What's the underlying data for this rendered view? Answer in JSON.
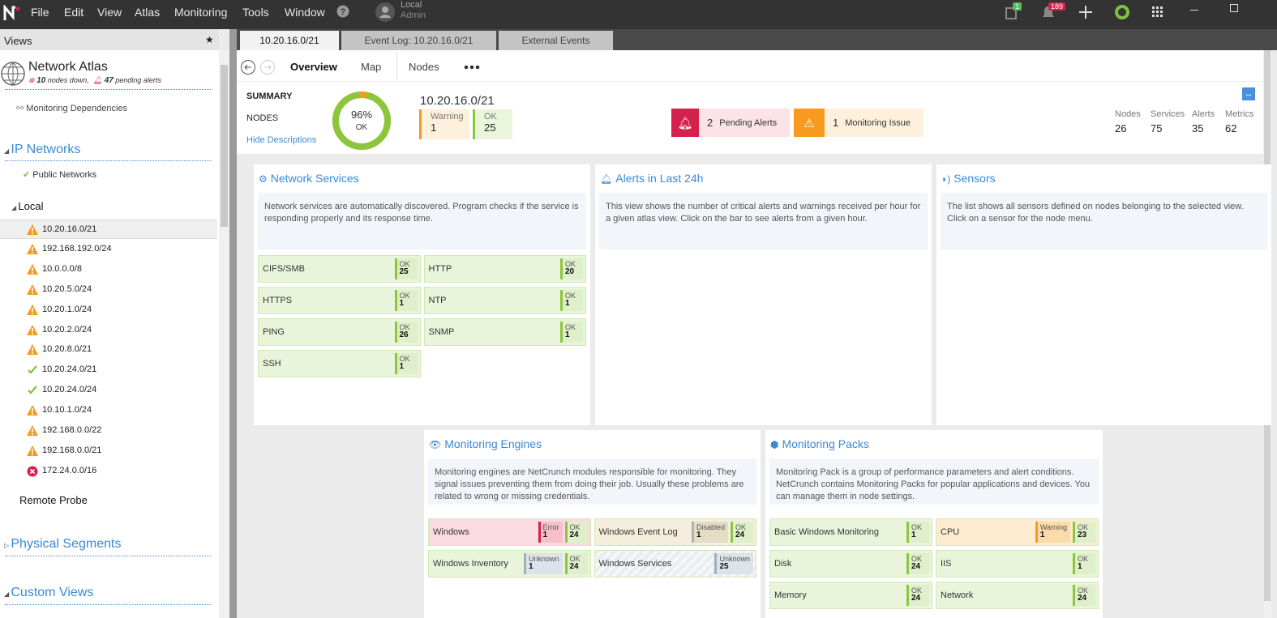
{
  "menu": {
    "items": [
      "File",
      "Edit",
      "View",
      "Atlas",
      "Monitoring",
      "Tools",
      "Window"
    ],
    "user": {
      "location": "Local",
      "role": "Admin"
    },
    "badges": {
      "tasks": 1,
      "notifications": 189
    }
  },
  "sidebar": {
    "header": "Views",
    "atlas": {
      "title": "Network Atlas",
      "nodes_down": 10,
      "nodes_down_text": "nodes down,",
      "pending_alerts": 47,
      "pending_alerts_text": "pending alerts"
    },
    "dependencies": "Monitoring Dependencies",
    "ip_networks": {
      "title": "IP Networks",
      "public": "Public Networks",
      "local": "Local",
      "networks": [
        {
          "name": "10.20.16.0/21",
          "status": "warning"
        },
        {
          "name": "192.168.192.0/24",
          "status": "warning"
        },
        {
          "name": "10.0.0.0/8",
          "status": "warning"
        },
        {
          "name": "10.20.5.0/24",
          "status": "warning"
        },
        {
          "name": "10.20.1.0/24",
          "status": "warning"
        },
        {
          "name": "10.20.2.0/24",
          "status": "warning"
        },
        {
          "name": "10.20.8.0/21",
          "status": "warning"
        },
        {
          "name": "10.20.24.0/21",
          "status": "ok"
        },
        {
          "name": "10.20.24.0/24",
          "status": "ok"
        },
        {
          "name": "10.10.1.0/24",
          "status": "warning"
        },
        {
          "name": "192.168.0.0/22",
          "status": "warning"
        },
        {
          "name": "192.168.0.0/21",
          "status": "warning"
        },
        {
          "name": "172.24.0.0/16",
          "status": "error"
        }
      ]
    },
    "remote_probe": "Remote Probe",
    "physical_segments": "Physical Segments",
    "custom_views": "Custom Views"
  },
  "tabs": [
    "10.20.16.0/21",
    "Event Log: 10.20.16.0/21",
    "External Events"
  ],
  "nav": [
    "Overview",
    "Map",
    "Nodes"
  ],
  "summary": {
    "heading": "SUMMARY",
    "nodes_label": "NODES",
    "hide": "Hide Descriptions",
    "donut": {
      "value": 96,
      "label": "96%",
      "caption": "OK"
    },
    "network": "10.20.16.0/21",
    "counts": [
      {
        "label": "Warning",
        "value": 1,
        "status": "warning"
      },
      {
        "label": "OK",
        "value": 25,
        "status": "ok"
      }
    ],
    "pending_alerts": {
      "value": 2,
      "label": "Pending Alerts"
    },
    "monitoring_issue": {
      "value": 1,
      "label": "Monitoring Issue"
    },
    "stats": [
      {
        "label": "Nodes",
        "value": 26
      },
      {
        "label": "Services",
        "value": 75
      },
      {
        "label": "Alerts",
        "value": 35
      },
      {
        "label": "Metrics",
        "value": 62
      }
    ]
  },
  "panels": [
    {
      "title": "Network Services",
      "icon": "services",
      "description": "Network services are automatically discovered. Program checks if the service is responding properly and its response time.",
      "tiles": [
        {
          "name": "CIFS/SMB",
          "status": "ok",
          "states": [
            {
              "label": "OK",
              "count": 25,
              "status": "ok"
            }
          ]
        },
        {
          "name": "HTTP",
          "status": "ok",
          "states": [
            {
              "label": "OK",
              "count": 20,
              "status": "ok"
            }
          ]
        },
        {
          "name": "HTTPS",
          "status": "ok",
          "states": [
            {
              "label": "OK",
              "count": 1,
              "status": "ok"
            }
          ]
        },
        {
          "name": "NTP",
          "status": "ok",
          "states": [
            {
              "label": "OK",
              "count": 1,
              "status": "ok"
            }
          ]
        },
        {
          "name": "PING",
          "status": "ok",
          "states": [
            {
              "label": "OK",
              "count": 26,
              "status": "ok"
            }
          ]
        },
        {
          "name": "SNMP",
          "status": "ok",
          "states": [
            {
              "label": "OK",
              "count": 1,
              "status": "ok"
            }
          ]
        },
        {
          "name": "SSH",
          "status": "ok",
          "states": [
            {
              "label": "OK",
              "count": 1,
              "status": "ok"
            }
          ]
        }
      ]
    },
    {
      "title": "Alerts in Last 24h",
      "icon": "bell",
      "description": "This view shows the number of critical alerts and warnings received per hour for a given atlas view. Click on the bar to see alerts from a given hour."
    },
    {
      "title": "Sensors",
      "icon": "sensor",
      "description": "The list shows all sensors defined on nodes belonging to the selected view. Click on a sensor for the node menu."
    },
    {
      "title": "Monitoring Engines",
      "icon": "eye",
      "description": "Monitoring engines are NetCrunch modules responsible for monitoring. They signal issues preventing them from doing their job. Usually these problems are related to wrong or missing credentials.",
      "tiles": [
        {
          "name": "Windows",
          "status": "error",
          "states": [
            {
              "label": "Error",
              "count": 1,
              "status": "error"
            },
            {
              "label": "OK",
              "count": 24,
              "status": "ok"
            }
          ]
        },
        {
          "name": "Windows Event Log",
          "status": "disabled",
          "states": [
            {
              "label": "Disabled",
              "count": 1,
              "status": "disabled"
            },
            {
              "label": "OK",
              "count": 24,
              "status": "ok"
            }
          ]
        },
        {
          "name": "Windows Inventory",
          "status": "ok",
          "states": [
            {
              "label": "Unknown",
              "count": 1,
              "status": "unknown"
            },
            {
              "label": "OK",
              "count": 24,
              "status": "ok"
            }
          ]
        },
        {
          "name": "Windows Services",
          "status": "unknown",
          "states": [
            {
              "label": "Unknown",
              "count": 25,
              "status": "unknown"
            }
          ]
        }
      ]
    },
    {
      "title": "Monitoring Packs",
      "icon": "pack",
      "description": "Monitoring Pack is a group of performance parameters and alert conditions. NetCrunch contains Monitoring Packs for popular applications and devices. You can manage them in node settings.",
      "tiles": [
        {
          "name": "Basic Windows Monitoring",
          "status": "ok",
          "states": [
            {
              "label": "OK",
              "count": 1,
              "status": "ok"
            }
          ]
        },
        {
          "name": "CPU",
          "status": "warning",
          "states": [
            {
              "label": "Warning",
              "count": 1,
              "status": "warning"
            },
            {
              "label": "OK",
              "count": 23,
              "status": "ok"
            }
          ]
        },
        {
          "name": "Disk",
          "status": "ok",
          "states": [
            {
              "label": "OK",
              "count": 24,
              "status": "ok"
            }
          ]
        },
        {
          "name": "IIS",
          "status": "ok",
          "states": [
            {
              "label": "OK",
              "count": 1,
              "status": "ok"
            }
          ]
        },
        {
          "name": "Memory",
          "status": "ok",
          "states": [
            {
              "label": "OK",
              "count": 24,
              "status": "ok"
            }
          ]
        },
        {
          "name": "Network",
          "status": "ok",
          "states": [
            {
              "label": "OK",
              "count": 24,
              "status": "ok"
            }
          ]
        }
      ]
    }
  ]
}
